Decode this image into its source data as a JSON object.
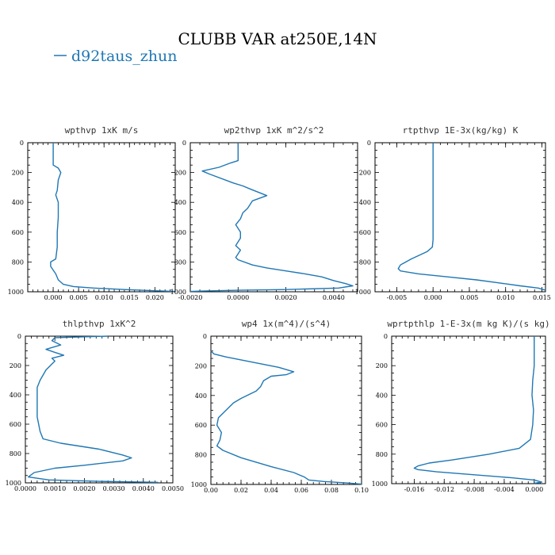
{
  "figure": {
    "title": "CLUBB VAR at250E,14N",
    "legend": "d92taus_zhun",
    "line_color": "#1f77b4"
  },
  "chart_data": [
    {
      "type": "line",
      "title": "wpthvp  1xK m/s",
      "xlim": [
        -0.005,
        0.024
      ],
      "ylim": [
        1000,
        0
      ],
      "xticks": [
        0.0,
        0.005,
        0.01,
        0.015,
        0.02
      ],
      "xtick_labels": [
        "0.000",
        "0.005",
        "0.010",
        "0.015",
        "0.020"
      ],
      "yticks": [
        0,
        200,
        400,
        600,
        800,
        1000
      ],
      "series": [
        {
          "values": [
            [
              0,
              0
            ],
            [
              0,
              100
            ],
            [
              0,
              150
            ],
            [
              0.001,
              170
            ],
            [
              0.0015,
              200
            ],
            [
              0.001,
              250
            ],
            [
              0.0008,
              320
            ],
            [
              0.0005,
              350
            ],
            [
              0.001,
              400
            ],
            [
              0.001,
              500
            ],
            [
              0.0008,
              600
            ],
            [
              0.0008,
              700
            ],
            [
              0.0005,
              780
            ],
            [
              -0.0005,
              800
            ],
            [
              -0.0005,
              830
            ],
            [
              0.0005,
              880
            ],
            [
              0.001,
              920
            ],
            [
              0.002,
              950
            ],
            [
              0.004,
              965
            ],
            [
              0.008,
              975
            ],
            [
              0.014,
              985
            ],
            [
              0.02,
              993
            ],
            [
              0.024,
              998
            ]
          ]
        }
      ]
    },
    {
      "type": "line",
      "title": "wp2thvp  1xK m^2/s^2",
      "xlim": [
        -0.002,
        0.005
      ],
      "ylim": [
        1000,
        0
      ],
      "xticks": [
        -0.002,
        0.0,
        0.002,
        0.004
      ],
      "xtick_labels": [
        "-0.0020",
        "0.0000",
        "0.0020",
        "0.0040"
      ],
      "yticks": [
        0,
        200,
        400,
        600,
        800,
        1000
      ],
      "series": [
        {
          "values": [
            [
              0,
              0
            ],
            [
              0,
              120
            ],
            [
              -0.0003,
              135
            ],
            [
              -0.0008,
              165
            ],
            [
              -0.0015,
              190
            ],
            [
              -0.0012,
              210
            ],
            [
              -0.0002,
              270
            ],
            [
              0.0002,
              290
            ],
            [
              0.0005,
              310
            ],
            [
              0.0012,
              355
            ],
            [
              0.0006,
              390
            ],
            [
              0.0004,
              440
            ],
            [
              0.0002,
              470
            ],
            [
              0.0001,
              510
            ],
            [
              -0.0001,
              550
            ],
            [
              0.0001,
              600
            ],
            [
              0.0001,
              640
            ],
            [
              -0.0001,
              690
            ],
            [
              0.0001,
              720
            ],
            [
              -0.0001,
              770
            ],
            [
              0,
              785
            ],
            [
              0.0006,
              820
            ],
            [
              0.0012,
              840
            ],
            [
              0.002,
              860
            ],
            [
              0.0028,
              880
            ],
            [
              0.0035,
              900
            ],
            [
              0.004,
              925
            ],
            [
              0.0045,
              945
            ],
            [
              0.0048,
              960
            ],
            [
              0.0042,
              975
            ],
            [
              0.002,
              985
            ],
            [
              0,
              990
            ],
            [
              -0.0015,
              995
            ],
            [
              -0.002,
              998
            ]
          ]
        }
      ]
    },
    {
      "type": "line",
      "title": "rtpthvp  1E-3x(kg/kg) K",
      "xlim": [
        -0.008,
        0.0155
      ],
      "ylim": [
        1000,
        0
      ],
      "xticks": [
        -0.005,
        0.0,
        0.005,
        0.01,
        0.015
      ],
      "xtick_labels": [
        "-0.005",
        "0.000",
        "0.005",
        "0.010",
        "0.015"
      ],
      "yticks": [
        0,
        200,
        400,
        600,
        800,
        1000
      ],
      "series": [
        {
          "values": [
            [
              0,
              0
            ],
            [
              0,
              200
            ],
            [
              0,
              400
            ],
            [
              0,
              600
            ],
            [
              0,
              650
            ],
            [
              -0.0001,
              700
            ],
            [
              -0.0008,
              730
            ],
            [
              -0.003,
              780
            ],
            [
              -0.0045,
              820
            ],
            [
              -0.0048,
              845
            ],
            [
              -0.0045,
              860
            ],
            [
              -0.002,
              880
            ],
            [
              0.002,
              900
            ],
            [
              0.006,
              920
            ],
            [
              0.009,
              940
            ],
            [
              0.012,
              960
            ],
            [
              0.0145,
              975
            ],
            [
              0.0155,
              990
            ]
          ]
        }
      ]
    },
    {
      "type": "line",
      "title": "thlpthvp  1xK^2",
      "xlim": [
        0.0,
        0.005
      ],
      "ylim": [
        1000,
        0
      ],
      "xticks": [
        0.0,
        0.001,
        0.002,
        0.003,
        0.004,
        0.005
      ],
      "xtick_labels": [
        "0.0000",
        "0.0010",
        "0.0020",
        "0.0030",
        "0.0040",
        "0.0050"
      ],
      "yticks": [
        0,
        200,
        400,
        600,
        800,
        1000
      ],
      "series": [
        {
          "values": [
            [
              0.0028,
              0
            ],
            [
              0.001,
              10
            ],
            [
              0.0009,
              30
            ],
            [
              0.0012,
              60
            ],
            [
              0.0007,
              90
            ],
            [
              0.001,
              110
            ],
            [
              0.0013,
              130
            ],
            [
              0.0009,
              150
            ],
            [
              0.001,
              170
            ],
            [
              0.0007,
              230
            ],
            [
              0.0005,
              300
            ],
            [
              0.0004,
              350
            ],
            [
              0.0004,
              450
            ],
            [
              0.0004,
              550
            ],
            [
              0.0005,
              650
            ],
            [
              0.0006,
              700
            ],
            [
              0.0012,
              730
            ],
            [
              0.0025,
              770
            ],
            [
              0.0033,
              810
            ],
            [
              0.0036,
              830
            ],
            [
              0.0033,
              850
            ],
            [
              0.002,
              880
            ],
            [
              0.001,
              900
            ],
            [
              0.0003,
              930
            ],
            [
              0.0001,
              960
            ],
            [
              0.0008,
              980
            ],
            [
              0.0025,
              990
            ],
            [
              0.0045,
              996
            ]
          ]
        }
      ]
    },
    {
      "type": "line",
      "title": "wp4  1x(m^4)/(s^4)",
      "xlim": [
        0.0,
        0.1
      ],
      "ylim": [
        1000,
        0
      ],
      "xticks": [
        0.0,
        0.02,
        0.04,
        0.06,
        0.08,
        0.1
      ],
      "xtick_labels": [
        "0.00",
        "0.02",
        "0.04",
        "0.06",
        "0.08",
        "0.10"
      ],
      "yticks": [
        0,
        200,
        400,
        600,
        800,
        1000
      ],
      "series": [
        {
          "values": [
            [
              0,
              100
            ],
            [
              0.002,
              120
            ],
            [
              0.01,
              140
            ],
            [
              0.02,
              160
            ],
            [
              0.03,
              180
            ],
            [
              0.045,
              210
            ],
            [
              0.055,
              240
            ],
            [
              0.05,
              260
            ],
            [
              0.04,
              270
            ],
            [
              0.035,
              300
            ],
            [
              0.033,
              340
            ],
            [
              0.03,
              370
            ],
            [
              0.02,
              420
            ],
            [
              0.015,
              450
            ],
            [
              0.01,
              500
            ],
            [
              0.005,
              550
            ],
            [
              0.004,
              600
            ],
            [
              0.007,
              650
            ],
            [
              0.006,
              700
            ],
            [
              0.004,
              740
            ],
            [
              0.008,
              770
            ],
            [
              0.02,
              820
            ],
            [
              0.04,
              880
            ],
            [
              0.055,
              920
            ],
            [
              0.062,
              950
            ],
            [
              0.065,
              970
            ],
            [
              0.075,
              980
            ],
            [
              0.09,
              990
            ],
            [
              0.1,
              998
            ]
          ]
        }
      ]
    },
    {
      "type": "line",
      "title": "wprtpthlp  1-E-3x(m kg K)/(s kg)",
      "xlim": [
        -0.019,
        0.0015
      ],
      "ylim": [
        1000,
        0
      ],
      "xticks": [
        -0.016,
        -0.012,
        -0.008,
        -0.004,
        0.0
      ],
      "xtick_labels": [
        "-0.016",
        "-0.012",
        "-0.008",
        "-0.004",
        "0.000"
      ],
      "yticks": [
        0,
        200,
        400,
        600,
        800,
        1000
      ],
      "series": [
        {
          "values": [
            [
              0,
              0
            ],
            [
              0,
              200
            ],
            [
              -0.0002,
              300
            ],
            [
              -0.0003,
              400
            ],
            [
              -0.0001,
              500
            ],
            [
              -0.0002,
              600
            ],
            [
              -0.0005,
              700
            ],
            [
              -0.002,
              760
            ],
            [
              -0.006,
              800
            ],
            [
              -0.011,
              840
            ],
            [
              -0.014,
              860
            ],
            [
              -0.0155,
              880
            ],
            [
              -0.016,
              895
            ],
            [
              -0.0155,
              905
            ],
            [
              -0.013,
              920
            ],
            [
              -0.008,
              940
            ],
            [
              -0.003,
              960
            ],
            [
              0,
              975
            ],
            [
              0.001,
              990
            ],
            [
              0,
              998
            ]
          ]
        }
      ]
    }
  ]
}
